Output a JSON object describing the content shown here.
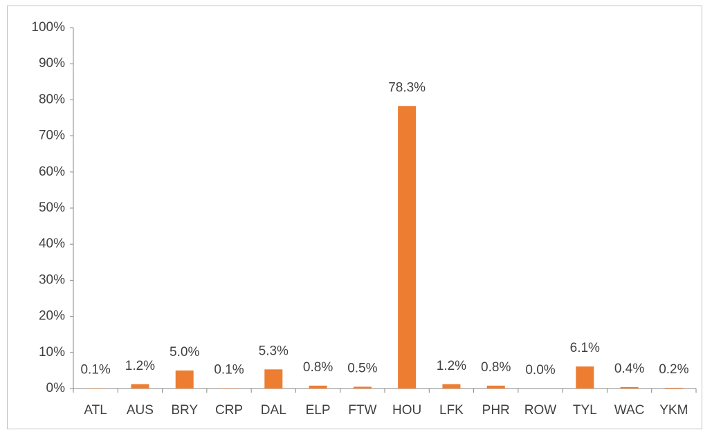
{
  "chart_data": {
    "type": "bar",
    "categories": [
      "ATL",
      "AUS",
      "BRY",
      "CRP",
      "DAL",
      "ELP",
      "FTW",
      "HOU",
      "LFK",
      "PHR",
      "ROW",
      "TYL",
      "WAC",
      "YKM"
    ],
    "values": [
      0.1,
      1.2,
      5.0,
      0.1,
      5.3,
      0.8,
      0.5,
      78.3,
      1.2,
      0.8,
      0.0,
      6.1,
      0.4,
      0.2
    ],
    "value_labels": [
      "0.1%",
      "1.2%",
      "5.0%",
      "0.1%",
      "5.3%",
      "0.8%",
      "0.5%",
      "78.3%",
      "1.2%",
      "0.8%",
      "0.0%",
      "6.1%",
      "0.4%",
      "0.2%"
    ],
    "color": "#ed7d31",
    "ylim": [
      0,
      100
    ],
    "yticks": [
      {
        "value": 0,
        "label": "0%"
      },
      {
        "value": 10,
        "label": "10%"
      },
      {
        "value": 20,
        "label": "20%"
      },
      {
        "value": 30,
        "label": "30%"
      },
      {
        "value": 40,
        "label": "40%"
      },
      {
        "value": 50,
        "label": "50%"
      },
      {
        "value": 60,
        "label": "60%"
      },
      {
        "value": 70,
        "label": "70%"
      },
      {
        "value": 80,
        "label": "80%"
      },
      {
        "value": 90,
        "label": "90%"
      },
      {
        "value": 100,
        "label": "100%"
      }
    ],
    "grid": false
  }
}
